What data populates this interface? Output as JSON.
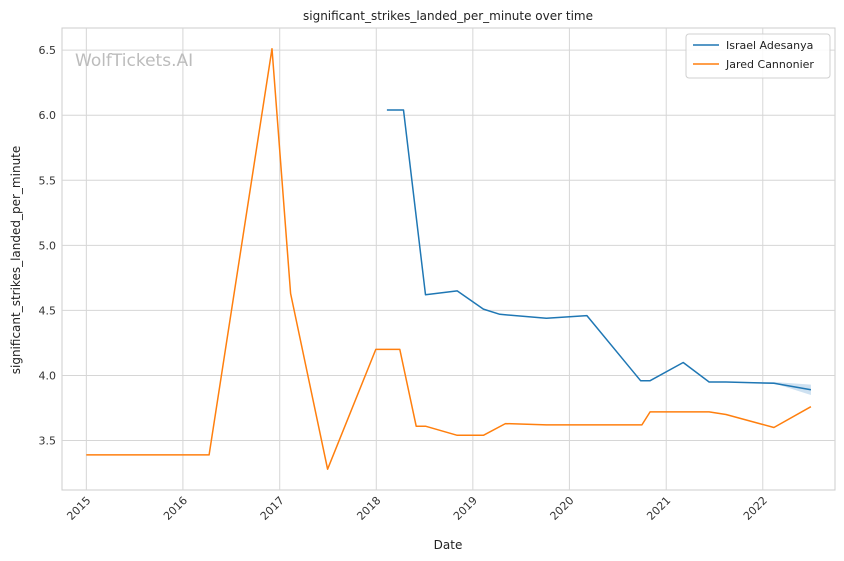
{
  "chart_data": {
    "type": "line",
    "title": "significant_strikes_landed_per_minute over time",
    "xlabel": "Date",
    "ylabel": "significant_strikes_landed_per_minute",
    "watermark": "WolfTickets.AI",
    "x_axis_type": "date",
    "xlim": [
      "2014-10-01",
      "2022-10-01"
    ],
    "ylim": [
      3.12,
      6.67
    ],
    "x_ticks": [
      "2015",
      "2016",
      "2017",
      "2018",
      "2019",
      "2020",
      "2021",
      "2022"
    ],
    "y_ticks": [
      "3.5",
      "4.0",
      "4.5",
      "5.0",
      "5.5",
      "6.0",
      "6.5"
    ],
    "grid": true,
    "legend_position": "top-right",
    "series": [
      {
        "name": "Israel Adesanya",
        "color": "#1f77b4",
        "band_color": "#aecde8",
        "x": [
          "2018-02-10",
          "2018-04-14",
          "2018-07-06",
          "2018-11-03",
          "2019-02-10",
          "2019-04-13",
          "2019-10-06",
          "2020-03-07",
          "2020-09-26",
          "2020-11-01",
          "2021-03-06",
          "2021-06-12",
          "2021-08-15",
          "2022-02-12",
          "2022-07-02"
        ],
        "y": [
          6.04,
          6.04,
          4.62,
          4.65,
          4.51,
          4.47,
          4.44,
          4.46,
          3.96,
          3.96,
          4.1,
          3.95,
          3.95,
          3.94,
          3.89
        ],
        "band_lower": [
          6.04,
          6.04,
          4.62,
          4.65,
          4.51,
          4.47,
          4.44,
          4.46,
          3.96,
          3.96,
          4.1,
          3.95,
          3.95,
          3.94,
          3.85
        ],
        "band_upper": [
          6.04,
          6.04,
          4.62,
          4.65,
          4.51,
          4.47,
          4.44,
          4.46,
          3.96,
          3.96,
          4.1,
          3.95,
          3.95,
          3.95,
          3.93
        ]
      },
      {
        "name": "Jared Cannonier",
        "color": "#ff7f0e",
        "x": [
          "2015-01-01",
          "2016-04-09",
          "2016-12-03",
          "2017-02-11",
          "2017-07-01",
          "2017-12-30",
          "2018-03-31",
          "2018-06-01",
          "2018-07-06",
          "2018-11-03",
          "2019-02-10",
          "2019-05-04",
          "2019-10-06",
          "2020-10-01",
          "2020-11-01",
          "2021-06-12",
          "2021-08-15",
          "2022-02-12",
          "2022-07-02"
        ],
        "y": [
          3.39,
          3.39,
          6.51,
          4.63,
          3.28,
          4.2,
          4.2,
          3.61,
          3.61,
          3.54,
          3.54,
          3.63,
          3.62,
          3.62,
          3.72,
          3.72,
          3.7,
          3.6,
          3.76
        ]
      }
    ]
  }
}
